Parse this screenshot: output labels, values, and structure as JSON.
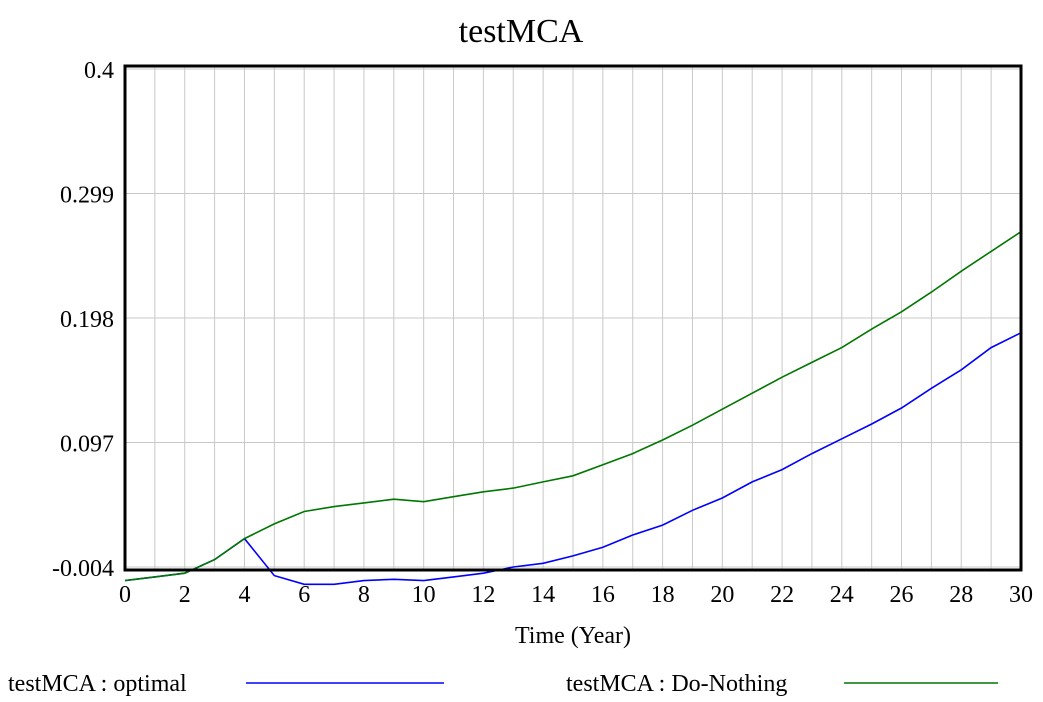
{
  "chart_data": {
    "type": "line",
    "title": "testMCA",
    "xlabel": "Time (Year)",
    "ylabel": "",
    "xlim": [
      0,
      30
    ],
    "ylim": [
      -0.004,
      0.4
    ],
    "x_ticks": [
      0,
      2,
      4,
      6,
      8,
      10,
      12,
      14,
      16,
      18,
      20,
      22,
      24,
      26,
      28,
      30
    ],
    "y_ticks": [
      "0.4",
      "0.299",
      "0.198",
      "0.097",
      "-0.004"
    ],
    "y_tick_values": [
      0.4,
      0.299,
      0.198,
      0.097,
      -0.004
    ],
    "grid": true,
    "legend_position": "bottom",
    "x": [
      0,
      1,
      2,
      3,
      4,
      5,
      6,
      7,
      8,
      9,
      10,
      11,
      12,
      13,
      14,
      15,
      16,
      17,
      18,
      19,
      20,
      21,
      22,
      23,
      24,
      25,
      26,
      27,
      28,
      29,
      30
    ],
    "series": [
      {
        "name": "testMCA : optimal",
        "color": "#0000ff",
        "values": [
          -0.015,
          -0.012,
          -0.009,
          0.002,
          0.019,
          -0.011,
          -0.018,
          -0.018,
          -0.015,
          -0.014,
          -0.015,
          -0.012,
          -0.009,
          -0.004,
          -0.001,
          0.005,
          0.012,
          0.022,
          0.03,
          0.042,
          0.052,
          0.065,
          0.075,
          0.088,
          0.1,
          0.112,
          0.125,
          0.141,
          0.156,
          0.174,
          0.186
        ]
      },
      {
        "name": "testMCA : Do-Nothing",
        "color": "#007700",
        "values": [
          -0.015,
          -0.012,
          -0.009,
          0.002,
          0.019,
          0.031,
          0.041,
          0.045,
          0.048,
          0.051,
          0.049,
          0.053,
          0.057,
          0.06,
          0.065,
          0.07,
          0.079,
          0.088,
          0.099,
          0.111,
          0.124,
          0.137,
          0.15,
          0.162,
          0.174,
          0.189,
          0.203,
          0.219,
          0.236,
          0.252,
          0.268
        ]
      }
    ]
  }
}
